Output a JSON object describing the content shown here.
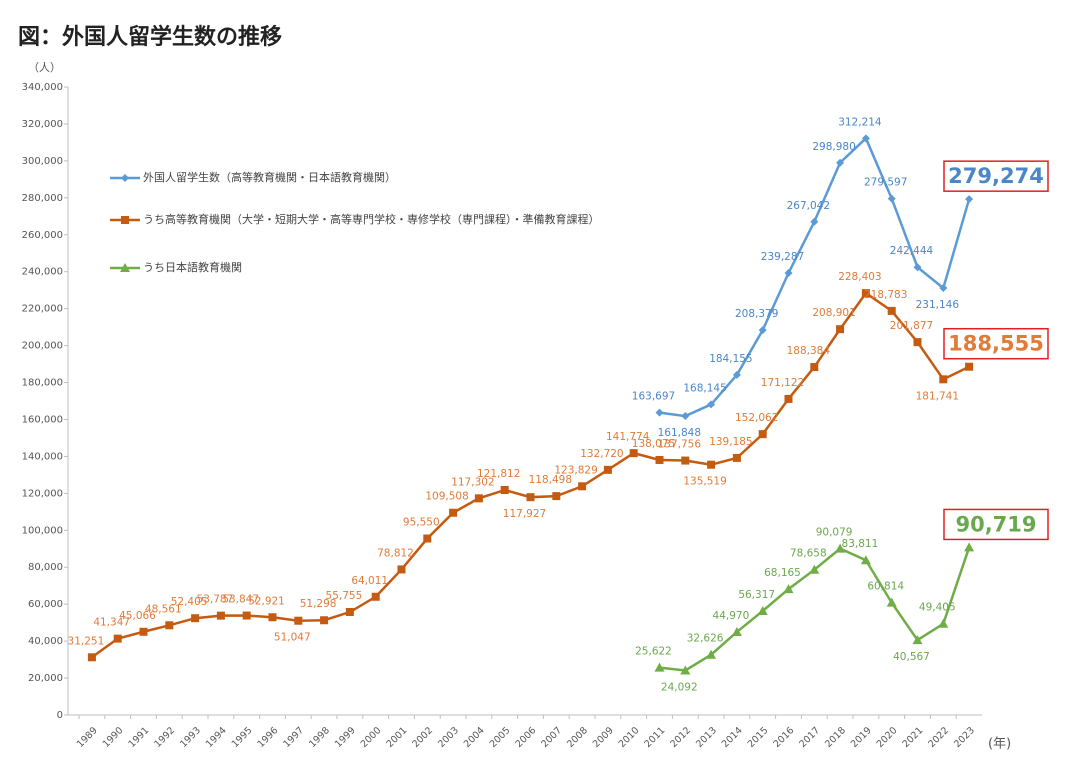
{
  "chart_data": {
    "type": "line",
    "title": "図：外国人留学生数の推移",
    "y_label": "（人）",
    "x_label": "(年)",
    "categories": [
      "1989",
      "1990",
      "1991",
      "1992",
      "1993",
      "1994",
      "1995",
      "1996",
      "1997",
      "1998",
      "1999",
      "2000",
      "2001",
      "2002",
      "2003",
      "2004",
      "2005",
      "2006",
      "2007",
      "2008",
      "2009",
      "2010",
      "2011",
      "2012",
      "2013",
      "2014",
      "2015",
      "2016",
      "2017",
      "2018",
      "2019",
      "2020",
      "2021",
      "2022",
      "2023"
    ],
    "ylim": [
      0,
      340000
    ],
    "yticks": [
      0,
      {
        "value": 20000,
        "label": "20,000"
      },
      {
        "value": 40000,
        "label": "40,000"
      },
      {
        "value": 60000,
        "label": "60,000"
      },
      {
        "value": 80000,
        "label": "80,000"
      },
      {
        "value": 100000,
        "label": "100,000"
      },
      {
        "value": 120000,
        "label": "120,000"
      },
      {
        "value": 140000,
        "label": "140,000"
      },
      {
        "value": 160000,
        "label": "160,000"
      },
      {
        "value": 180000,
        "label": "180,000"
      },
      {
        "value": 200000,
        "label": "200,000"
      },
      {
        "value": 220000,
        "label": "220,000"
      },
      {
        "value": 240000,
        "label": "240,000"
      },
      {
        "value": 260000,
        "label": "260,000"
      },
      {
        "value": 280000,
        "label": "280,000"
      },
      {
        "value": 300000,
        "label": "300,000"
      },
      {
        "value": 320000,
        "label": "320,000"
      },
      {
        "value": 340000,
        "label": "340,000"
      }
    ],
    "grid": false,
    "series": [
      {
        "name": "外国人留学生数（高等教育機関・日本語教育機関）",
        "color": "#5b9bd5",
        "label_color": "#4a86c8",
        "marker": "diamond",
        "values": [
          null,
          null,
          null,
          null,
          null,
          null,
          null,
          null,
          null,
          null,
          null,
          null,
          null,
          null,
          null,
          null,
          null,
          null,
          null,
          null,
          null,
          null,
          163697,
          161848,
          168145,
          184155,
          208379,
          239287,
          267042,
          298980,
          312214,
          279597,
          242444,
          231146,
          279274
        ],
        "value_labels": [
          null,
          null,
          null,
          null,
          null,
          null,
          null,
          null,
          null,
          null,
          null,
          null,
          null,
          null,
          null,
          null,
          null,
          null,
          null,
          null,
          null,
          null,
          "163,697",
          "161,848",
          "168,145",
          "184,155",
          "208,379",
          "239,287",
          "267,042",
          "298,980",
          "312,214",
          "279,597",
          "242,444",
          "231,146",
          "279,274"
        ]
      },
      {
        "name": "うち高等教育機関（大学・短期大学・高等専門学校・専修学校（専門課程）・準備教育課程）",
        "color": "#c55a11",
        "label_color": "#e07b39",
        "marker": "square",
        "values": [
          31251,
          41347,
          45066,
          48561,
          52405,
          53787,
          53847,
          52921,
          51047,
          51298,
          55755,
          64011,
          78812,
          95550,
          109508,
          117302,
          121812,
          117927,
          118498,
          123829,
          132720,
          141774,
          138075,
          137756,
          135519,
          139185,
          152062,
          171122,
          188384,
          208901,
          228403,
          218783,
          201877,
          181741,
          188555
        ],
        "value_labels": [
          "31,251",
          "41,347",
          "45,066",
          "48,561",
          "52,405",
          "53,787",
          "53,847",
          "52,921",
          "51,047",
          "51,298",
          "55,755",
          "64,011",
          "78,812",
          "95,550",
          "109,508",
          "117,302",
          "121,812",
          "117,927",
          "118,498",
          "123,829",
          "132,720",
          "141,774",
          "138,075",
          "137,756",
          "135,519",
          "139,185",
          "152,062",
          "171,122",
          "188,384",
          "208,901",
          "228,403",
          "218,783",
          "201,877",
          "181,741",
          "188,555"
        ]
      },
      {
        "name": "うち日本語教育機関",
        "color": "#70ad47",
        "label_color": "#6aa84f",
        "marker": "triangle",
        "values": [
          null,
          null,
          null,
          null,
          null,
          null,
          null,
          null,
          null,
          null,
          null,
          null,
          null,
          null,
          null,
          null,
          null,
          null,
          null,
          null,
          null,
          null,
          25622,
          24092,
          32626,
          44970,
          56317,
          68165,
          78658,
          90079,
          83811,
          60814,
          40567,
          49405,
          90719
        ],
        "value_labels": [
          null,
          null,
          null,
          null,
          null,
          null,
          null,
          null,
          null,
          null,
          null,
          null,
          null,
          null,
          null,
          null,
          null,
          null,
          null,
          null,
          null,
          null,
          "25,622",
          "24,092",
          "32,626",
          "44,970",
          "56,317",
          "68,165",
          "78,658",
          "90,079",
          "83,811",
          "60,814",
          "40,567",
          "49,405",
          "90,719"
        ]
      }
    ]
  }
}
